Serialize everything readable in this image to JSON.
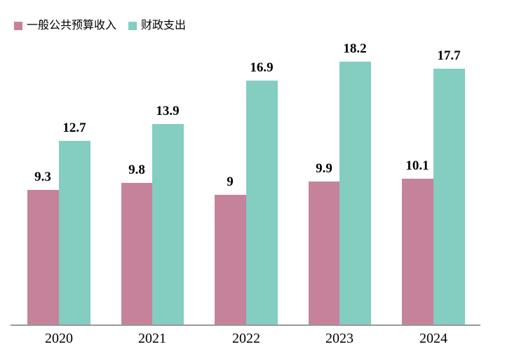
{
  "legend": {
    "items": [
      {
        "label": "一般公共预算收入",
        "color": "#c5829b"
      },
      {
        "label": "财政支出",
        "color": "#84cdc1"
      }
    ]
  },
  "chart_data": {
    "type": "bar",
    "categories": [
      "2020",
      "2021",
      "2022",
      "2023",
      "2024"
    ],
    "series": [
      {
        "name": "一般公共预算收入",
        "key": "revenue",
        "color": "#c5829b",
        "values": [
          9.3,
          9.8,
          9,
          9.9,
          10.1
        ]
      },
      {
        "name": "财政支出",
        "key": "expenditure",
        "color": "#84cdc1",
        "values": [
          12.7,
          13.9,
          16.9,
          18.2,
          17.7
        ]
      }
    ],
    "value_labels": {
      "revenue": [
        "9.3",
        "9.8",
        "9",
        "9.9",
        "10.1"
      ],
      "expenditure": [
        "12.7",
        "13.9",
        "16.9",
        "18.2",
        "17.7"
      ]
    },
    "title": "",
    "xlabel": "",
    "ylabel": "",
    "ylim": [
      0,
      20
    ],
    "grid": false,
    "y_axis_visible": false,
    "legend_position": "top-left",
    "axis_color": "#999999",
    "background_color": "#ffffff",
    "label_color": "#000000"
  }
}
